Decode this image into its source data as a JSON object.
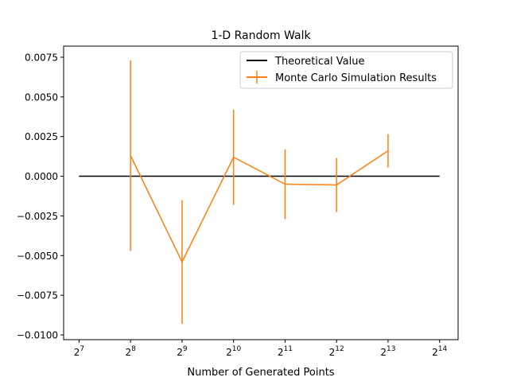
{
  "chart_data": {
    "type": "line",
    "title": "1-D Random Walk",
    "xlabel": "Number of Generated Points",
    "ylabel": "",
    "x_scale": "log2",
    "xlim_exponent": [
      6.7,
      14.36
    ],
    "ylim": [
      -0.0103,
      0.0082
    ],
    "x_ticks": [
      {
        "base": "2",
        "exp": "7",
        "value": 128
      },
      {
        "base": "2",
        "exp": "8",
        "value": 256
      },
      {
        "base": "2",
        "exp": "9",
        "value": 512
      },
      {
        "base": "2",
        "exp": "10",
        "value": 1024
      },
      {
        "base": "2",
        "exp": "11",
        "value": 2048
      },
      {
        "base": "2",
        "exp": "12",
        "value": 4096
      },
      {
        "base": "2",
        "exp": "13",
        "value": 8192
      },
      {
        "base": "2",
        "exp": "14",
        "value": 16384
      }
    ],
    "y_ticks": [
      {
        "label": "0.0075",
        "value": 0.0075
      },
      {
        "label": "0.0050",
        "value": 0.005
      },
      {
        "label": "0.0025",
        "value": 0.0025
      },
      {
        "label": "0.0000",
        "value": 0.0
      },
      {
        "label": "−0.0025",
        "value": -0.0025
      },
      {
        "label": "−0.0050",
        "value": -0.005
      },
      {
        "label": "−0.0075",
        "value": -0.0075
      },
      {
        "label": "−0.0100",
        "value": -0.01
      }
    ],
    "legend_position": "top-right",
    "series": [
      {
        "name": "Theoretical Value",
        "color": "#000000",
        "style": "line",
        "x": [
          128,
          16384
        ],
        "y": [
          0.0,
          0.0
        ]
      },
      {
        "name": "Monte Carlo Simulation Results",
        "color": "#ff7f0e",
        "style": "errorbar",
        "x": [
          256,
          512,
          1024,
          2048,
          4096,
          8192
        ],
        "y": [
          0.0013,
          -0.0054,
          0.0012,
          -0.0005,
          -0.00055,
          0.0016
        ],
        "yerr": [
          0.006,
          0.0039,
          0.003,
          0.0022,
          0.0017,
          0.00105
        ]
      }
    ]
  }
}
